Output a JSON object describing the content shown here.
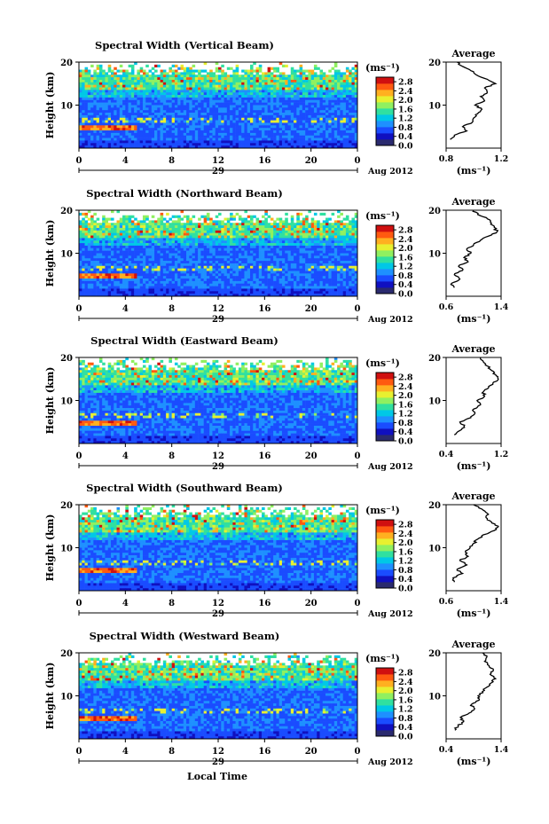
{
  "colorbar": {
    "unit_label": "(ms⁻¹)",
    "tick_labels": [
      "2.8",
      "2.4",
      "2.0",
      "1.6",
      "1.2",
      "0.8",
      "0.4",
      "0.0"
    ],
    "range": [
      0,
      3.0
    ],
    "colors": [
      "#2a2a6e",
      "#1010c0",
      "#1a4cff",
      "#1e90ff",
      "#00c8e6",
      "#30e0a0",
      "#90f060",
      "#e8f030",
      "#ffb020",
      "#ff5a10",
      "#d01010"
    ]
  },
  "date_label": "Aug 2012",
  "day_label": "29",
  "xlabel": "Local Time",
  "chart_data": [
    {
      "type": "heatmap",
      "title": "Spectral Width (Vertical Beam)",
      "xlabel": "Local Time",
      "ylabel": "Height (km)",
      "x_ticks": [
        "0",
        "4",
        "8",
        "12",
        "16",
        "20",
        "0"
      ],
      "xlim": [
        0,
        24
      ],
      "y_ticks": [
        "10",
        "20"
      ],
      "ylim": [
        0,
        20
      ],
      "profile": {
        "title": "Average",
        "xlabel": "(ms⁻¹)",
        "xlim": [
          0.8,
          1.2
        ],
        "x_ticks": [
          "0.8",
          "1.2"
        ],
        "y_ticks": [
          "10",
          "20"
        ],
        "ylim": [
          0,
          20
        ],
        "height_km": [
          2,
          3,
          4,
          5,
          6,
          7,
          8,
          9,
          10,
          11,
          12,
          13,
          14,
          15,
          16,
          17,
          18,
          19,
          20
        ],
        "values": [
          0.83,
          0.86,
          0.95,
          0.92,
          0.99,
          1.0,
          1.03,
          1.06,
          1.01,
          1.08,
          1.05,
          1.1,
          1.08,
          1.16,
          1.1,
          1.02,
          0.98,
          0.92,
          0.88
        ]
      }
    },
    {
      "type": "heatmap",
      "title": "Spectral Width (Northward Beam)",
      "xlabel": "Local Time",
      "ylabel": "Height (km)",
      "x_ticks": [
        "0",
        "4",
        "8",
        "12",
        "16",
        "20",
        "0"
      ],
      "xlim": [
        0,
        24
      ],
      "y_ticks": [
        "10",
        "20"
      ],
      "ylim": [
        0,
        20
      ],
      "profile": {
        "title": "Average",
        "xlabel": "(ms⁻¹)",
        "xlim": [
          0.6,
          1.4
        ],
        "x_ticks": [
          "0.6",
          "1.4"
        ],
        "y_ticks": [
          "10",
          "20"
        ],
        "ylim": [
          0,
          20
        ],
        "height_km": [
          2,
          3,
          4,
          5,
          6,
          7,
          8,
          9,
          10,
          11,
          12,
          13,
          14,
          15,
          16,
          17,
          18,
          19,
          20
        ],
        "values": [
          0.72,
          0.68,
          0.8,
          0.72,
          0.84,
          0.78,
          0.92,
          0.86,
          0.96,
          0.9,
          1.0,
          1.1,
          1.22,
          1.34,
          1.3,
          1.26,
          1.2,
          1.06,
          1.0
        ]
      }
    },
    {
      "type": "heatmap",
      "title": "Spectral Width (Eastward Beam)",
      "xlabel": "Local Time",
      "ylabel": "Height (km)",
      "x_ticks": [
        "0",
        "4",
        "8",
        "12",
        "16",
        "20",
        "0"
      ],
      "xlim": [
        0,
        24
      ],
      "y_ticks": [
        "10",
        "20"
      ],
      "ylim": [
        0,
        20
      ],
      "profile": {
        "title": "Average",
        "xlabel": "(ms⁻¹)",
        "xlim": [
          0.4,
          1.2
        ],
        "x_ticks": [
          "0.4",
          "1.2"
        ],
        "y_ticks": [
          "10",
          "20"
        ],
        "ylim": [
          0,
          20
        ],
        "height_km": [
          2,
          3,
          4,
          5,
          6,
          7,
          8,
          9,
          10,
          11,
          12,
          13,
          14,
          15,
          16,
          17,
          18,
          19,
          20
        ],
        "values": [
          0.52,
          0.6,
          0.66,
          0.6,
          0.76,
          0.82,
          0.8,
          0.9,
          0.85,
          0.96,
          0.94,
          1.02,
          1.08,
          1.16,
          1.12,
          1.06,
          1.0,
          0.94,
          0.9
        ]
      }
    },
    {
      "type": "heatmap",
      "title": "Spectral Width (Southward Beam)",
      "xlabel": "Local Time",
      "ylabel": "Height (km)",
      "x_ticks": [
        "0",
        "4",
        "8",
        "12",
        "16",
        "20",
        "0"
      ],
      "xlim": [
        0,
        24
      ],
      "y_ticks": [
        "10",
        "20"
      ],
      "ylim": [
        0,
        20
      ],
      "profile": {
        "title": "Average",
        "xlabel": "(ms⁻¹)",
        "xlim": [
          0.6,
          1.4
        ],
        "x_ticks": [
          "0.6",
          "1.4"
        ],
        "y_ticks": [
          "10",
          "20"
        ],
        "ylim": [
          0,
          20
        ],
        "height_km": [
          2,
          3,
          4,
          5,
          6,
          7,
          8,
          9,
          10,
          11,
          12,
          13,
          14,
          15,
          16,
          17,
          18,
          19,
          20
        ],
        "values": [
          0.72,
          0.7,
          0.84,
          0.76,
          0.9,
          0.8,
          0.92,
          0.88,
          0.95,
          1.0,
          1.06,
          1.14,
          1.3,
          1.36,
          1.26,
          1.18,
          1.2,
          1.12,
          1.0
        ]
      }
    },
    {
      "type": "heatmap",
      "title": "Spectral Width (Westward Beam)",
      "xlabel": "Local Time",
      "ylabel": "Height (km)",
      "x_ticks": [
        "0",
        "4",
        "8",
        "12",
        "16",
        "20",
        "0"
      ],
      "xlim": [
        0,
        24
      ],
      "y_ticks": [
        "10",
        "20"
      ],
      "ylim": [
        0,
        20
      ],
      "profile": {
        "title": "Average",
        "xlabel": "(ms⁻¹)",
        "xlim": [
          0.4,
          1.4
        ],
        "x_ticks": [
          "0.4",
          "1.4"
        ],
        "y_ticks": [
          "10",
          "20"
        ],
        "ylim": [
          0,
          20
        ],
        "height_km": [
          2,
          3,
          4,
          5,
          6,
          7,
          8,
          9,
          10,
          11,
          12,
          13,
          14,
          15,
          16,
          17,
          18,
          19,
          20
        ],
        "values": [
          0.56,
          0.62,
          0.72,
          0.66,
          0.82,
          0.92,
          0.86,
          1.0,
          0.98,
          1.06,
          1.14,
          1.22,
          1.3,
          1.2,
          1.26,
          1.18,
          1.1,
          1.14,
          1.06
        ]
      }
    }
  ]
}
